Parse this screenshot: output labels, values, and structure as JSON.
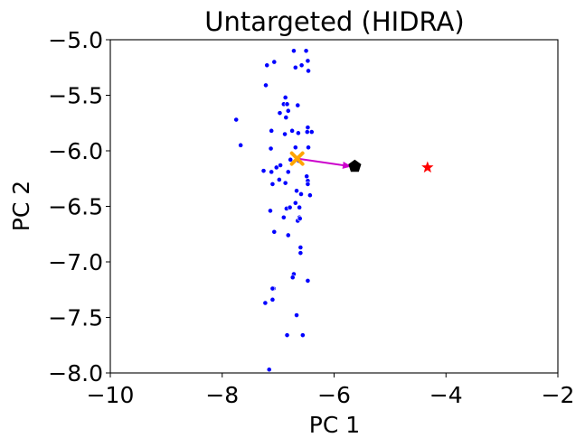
{
  "chart_data": {
    "type": "scatter",
    "title": "Untargeted (HIDRA)",
    "xlabel": "PC 1",
    "ylabel": "PC 2",
    "xlim": [
      -10,
      -2
    ],
    "ylim": [
      -8.0,
      -5.0
    ],
    "xticks": [
      -10,
      -8,
      -6,
      -4,
      -2
    ],
    "xtick_labels": [
      "−10",
      "−8",
      "−6",
      "−4",
      "−2"
    ],
    "yticks": [
      -8.0,
      -7.5,
      -7.0,
      -6.5,
      -6.0,
      -5.5,
      -5.0
    ],
    "ytick_labels": [
      "−8.0",
      "−7.5",
      "−7.0",
      "−6.5",
      "−6.0",
      "−5.5",
      "−5.0"
    ],
    "grid": false,
    "series": [
      {
        "marker": "dot",
        "color": "#0000ff",
        "points": [
          [
            -6.72,
            -5.1
          ],
          [
            -6.5,
            -5.1
          ],
          [
            -7.07,
            -5.2
          ],
          [
            -7.2,
            -5.23
          ],
          [
            -6.69,
            -5.25
          ],
          [
            -6.47,
            -5.19
          ],
          [
            -6.58,
            -5.23
          ],
          [
            -6.46,
            -5.28
          ],
          [
            -7.22,
            -5.41
          ],
          [
            -6.87,
            -5.52
          ],
          [
            -6.9,
            -5.58
          ],
          [
            -6.84,
            -5.58
          ],
          [
            -6.82,
            -5.64
          ],
          [
            -6.65,
            -5.59
          ],
          [
            -6.97,
            -5.66
          ],
          [
            -6.86,
            -5.7
          ],
          [
            -7.75,
            -5.72
          ],
          [
            -6.47,
            -5.79
          ],
          [
            -7.12,
            -5.82
          ],
          [
            -6.75,
            -5.82
          ],
          [
            -6.48,
            -5.83
          ],
          [
            -6.4,
            -5.83
          ],
          [
            -6.64,
            -5.84
          ],
          [
            -6.88,
            -5.85
          ],
          [
            -7.67,
            -5.95
          ],
          [
            -7.13,
            -5.98
          ],
          [
            -6.69,
            -5.97
          ],
          [
            -6.46,
            -5.97
          ],
          [
            -6.78,
            -6.08
          ],
          [
            -6.63,
            -6.09
          ],
          [
            -7.03,
            -6.15
          ],
          [
            -6.96,
            -6.13
          ],
          [
            -7.26,
            -6.18
          ],
          [
            -6.82,
            -6.19
          ],
          [
            -7.12,
            -6.19
          ],
          [
            -6.49,
            -6.23
          ],
          [
            -6.47,
            -6.27
          ],
          [
            -6.87,
            -6.29
          ],
          [
            -6.47,
            -6.3
          ],
          [
            -6.98,
            -6.26
          ],
          [
            -7.1,
            -6.3
          ],
          [
            -6.67,
            -6.36
          ],
          [
            -6.59,
            -6.39
          ],
          [
            -6.43,
            -6.4
          ],
          [
            -6.69,
            -6.47
          ],
          [
            -6.62,
            -6.51
          ],
          [
            -6.85,
            -6.52
          ],
          [
            -6.79,
            -6.51
          ],
          [
            -7.14,
            -6.54
          ],
          [
            -6.62,
            -6.6
          ],
          [
            -6.65,
            -6.63
          ],
          [
            -6.61,
            -6.61
          ],
          [
            -6.9,
            -6.6
          ],
          [
            -7.07,
            -6.73
          ],
          [
            -6.82,
            -6.76
          ],
          [
            -6.6,
            -6.87
          ],
          [
            -6.6,
            -6.92
          ],
          [
            -6.72,
            -7.11
          ],
          [
            -6.74,
            -7.14
          ],
          [
            -6.47,
            -7.17
          ],
          [
            -7.08,
            -7.24
          ],
          [
            -7.1,
            -7.24
          ],
          [
            -7.1,
            -7.34
          ],
          [
            -7.23,
            -7.37
          ],
          [
            -6.67,
            -7.48
          ],
          [
            -6.84,
            -7.66
          ],
          [
            -6.56,
            -7.66
          ],
          [
            -7.16,
            -7.97
          ]
        ]
      },
      {
        "marker": "star",
        "color": "#ff0000",
        "points": [
          [
            -4.33,
            -6.15
          ]
        ]
      },
      {
        "marker": "pentagon",
        "color": "#000000",
        "points": [
          [
            -5.63,
            -6.14
          ]
        ]
      },
      {
        "marker": "x",
        "color": "#ffa500",
        "points": [
          [
            -6.66,
            -6.07
          ]
        ]
      }
    ],
    "arrows": [
      {
        "from": [
          -6.66,
          -6.07
        ],
        "to": [
          -5.7,
          -6.14
        ],
        "color": "#cc00cc"
      }
    ]
  }
}
